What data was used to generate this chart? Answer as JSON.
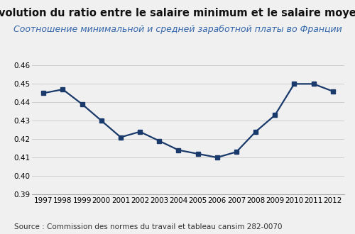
{
  "title": "Évolution du ratio entre le salaire minimum et le salaire moyen",
  "subtitle": "Соотношение минимальной и средней заработной платы во Франции",
  "source": "Source : Commission des normes du travail et tableau cansim 282-0070",
  "years": [
    1997,
    1998,
    1999,
    2000,
    2001,
    2002,
    2003,
    2004,
    2005,
    2006,
    2007,
    2008,
    2009,
    2010,
    2011,
    2012
  ],
  "values": [
    0.445,
    0.447,
    0.439,
    0.43,
    0.421,
    0.424,
    0.419,
    0.414,
    0.412,
    0.41,
    0.413,
    0.424,
    0.433,
    0.45,
    0.45,
    0.446
  ],
  "line_color": "#1a3a6b",
  "marker": "s",
  "marker_size": 4,
  "ylim": [
    0.39,
    0.46
  ],
  "yticks": [
    0.39,
    0.4,
    0.41,
    0.42,
    0.43,
    0.44,
    0.45,
    0.46
  ],
  "title_fontsize": 10.5,
  "subtitle_fontsize": 9,
  "subtitle_color": "#3366aa",
  "source_fontsize": 7.5,
  "bg_color": "#f0f0f0",
  "grid_color": "#cccccc",
  "tick_fontsize": 7.5
}
